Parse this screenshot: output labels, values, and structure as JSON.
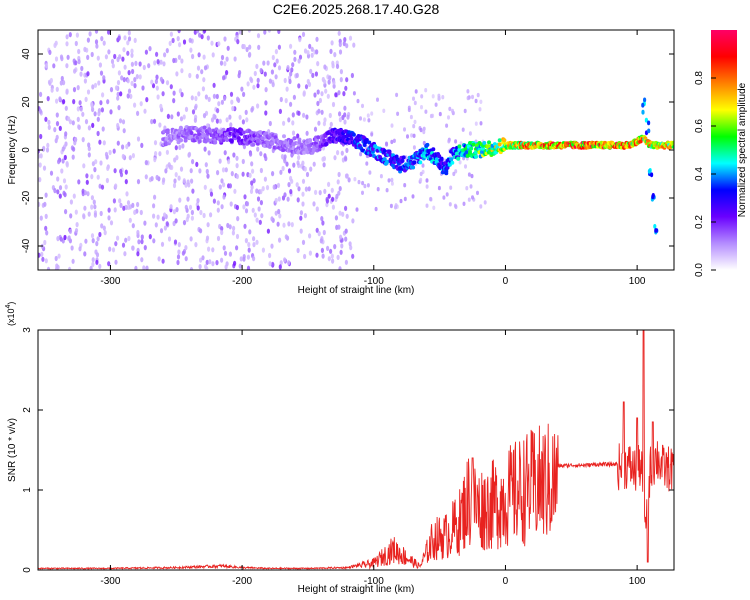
{
  "title": "C2E6.2025.268.17.40.G28",
  "chart_data": [
    {
      "type": "heatmap",
      "xlabel": "Height of straight line (km)",
      "ylabel": "Frequency (Hz)",
      "xlim": [
        -355,
        128
      ],
      "ylim": [
        -50,
        50
      ],
      "xticks": [
        -300,
        -200,
        -100,
        0,
        100
      ],
      "yticks": [
        -40,
        -20,
        0,
        20,
        40
      ],
      "colorbar": {
        "label": "Normalized spectral amplitude",
        "range": [
          0,
          1
        ],
        "ticks": [
          0.0,
          0.2,
          0.4,
          0.6,
          0.8
        ],
        "tick_labels": [
          "0.0",
          "0.2",
          "0.4",
          "0.6",
          "0.8"
        ],
        "colors": [
          "#ffffff",
          "#b48cff",
          "#6a00ff",
          "#0000ff",
          "#00ffff",
          "#00ff00",
          "#ffff00",
          "#ff8000",
          "#ff0000",
          "#ff0066"
        ]
      },
      "ridge": [
        {
          "x": -260,
          "freq": 5,
          "amp": 0.15
        },
        {
          "x": -240,
          "freq": 7,
          "amp": 0.17
        },
        {
          "x": -220,
          "freq": 6,
          "amp": 0.18
        },
        {
          "x": -205,
          "freq": 6,
          "amp": 0.25
        },
        {
          "x": -180,
          "freq": 4,
          "amp": 0.17
        },
        {
          "x": -150,
          "freq": 1,
          "amp": 0.15
        },
        {
          "x": -130,
          "freq": 6,
          "amp": 0.28
        },
        {
          "x": -120,
          "freq": 5,
          "amp": 0.35
        },
        {
          "x": -110,
          "freq": 3,
          "amp": 0.4
        },
        {
          "x": -100,
          "freq": 0,
          "amp": 0.42
        },
        {
          "x": -90,
          "freq": -3,
          "amp": 0.4
        },
        {
          "x": -80,
          "freq": -6,
          "amp": 0.38
        },
        {
          "x": -70,
          "freq": -5,
          "amp": 0.4
        },
        {
          "x": -60,
          "freq": 0,
          "amp": 0.45
        },
        {
          "x": -50,
          "freq": -5,
          "amp": 0.45
        },
        {
          "x": -45,
          "freq": -8,
          "amp": 0.4
        },
        {
          "x": -40,
          "freq": -2,
          "amp": 0.45
        },
        {
          "x": -30,
          "freq": 0,
          "amp": 0.55
        },
        {
          "x": -20,
          "freq": 0,
          "amp": 0.62
        },
        {
          "x": -10,
          "freq": 1,
          "amp": 0.7
        },
        {
          "x": 0,
          "freq": 2,
          "amp": 0.78
        },
        {
          "x": 20,
          "freq": 2,
          "amp": 0.88
        },
        {
          "x": 40,
          "freq": 2,
          "amp": 0.93
        },
        {
          "x": 60,
          "freq": 2,
          "amp": 0.95
        },
        {
          "x": 80,
          "freq": 2,
          "amp": 0.95
        },
        {
          "x": 95,
          "freq": 2,
          "amp": 0.9
        },
        {
          "x": 105,
          "freq": 5,
          "amp": 0.85
        },
        {
          "x": 110,
          "freq": 2,
          "amp": 0.82
        },
        {
          "x": 120,
          "freq": 2,
          "amp": 0.8
        },
        {
          "x": 128,
          "freq": 2,
          "amp": 0.75
        }
      ],
      "spur_branch": [
        {
          "x": 105,
          "freq": 18
        },
        {
          "x": 108,
          "freq": 10
        },
        {
          "x": 110,
          "freq": -10
        },
        {
          "x": 112,
          "freq": -20
        },
        {
          "x": 114,
          "freq": -32
        }
      ],
      "noise_region_x": [
        -355,
        -115
      ]
    },
    {
      "type": "line",
      "xlabel": "Height of straight line (km)",
      "ylabel": "SNR (10 * v/v)",
      "y_multiplier": "(x10^4)",
      "y_multiplier_base": "(x10",
      "y_multiplier_exp": "4",
      "y_multiplier_close": ")",
      "xlim": [
        -355,
        128
      ],
      "ylim": [
        0,
        3
      ],
      "xticks": [
        -300,
        -200,
        -100,
        0,
        100
      ],
      "yticks": [
        0,
        1,
        2,
        3
      ],
      "line_color": "#e8221f",
      "series": [
        {
          "x": [
            -355,
            -300,
            -250,
            -215,
            -200,
            -180,
            -150,
            -120,
            -100,
            -85,
            -75,
            -65,
            -55,
            -45,
            -35,
            -28,
            -20,
            -10,
            0,
            10,
            20,
            30,
            40,
            50,
            60,
            70,
            80,
            90,
            95,
            100,
            103,
            106,
            110,
            115,
            120,
            128
          ],
          "y": [
            0.02,
            0.02,
            0.03,
            0.05,
            0.03,
            0.02,
            0.02,
            0.03,
            0.1,
            0.3,
            0.18,
            0.05,
            0.45,
            0.5,
            0.7,
            1.05,
            0.9,
            0.95,
            1.05,
            1.15,
            1.22,
            1.28,
            1.3,
            1.31,
            1.31,
            1.32,
            1.32,
            1.33,
            1.33,
            1.25,
            1.4,
            0.5,
            1.3,
            1.45,
            1.3,
            1.3
          ],
          "peaks": [
            {
              "x": -25,
              "y": 1.4
            },
            {
              "x": 90,
              "y": 2.1
            },
            {
              "x": 100,
              "y": 1.9
            },
            {
              "x": 105,
              "y": 3.0
            },
            {
              "x": 108,
              "y": 0.1
            },
            {
              "x": 112,
              "y": 1.85
            }
          ]
        }
      ]
    }
  ]
}
